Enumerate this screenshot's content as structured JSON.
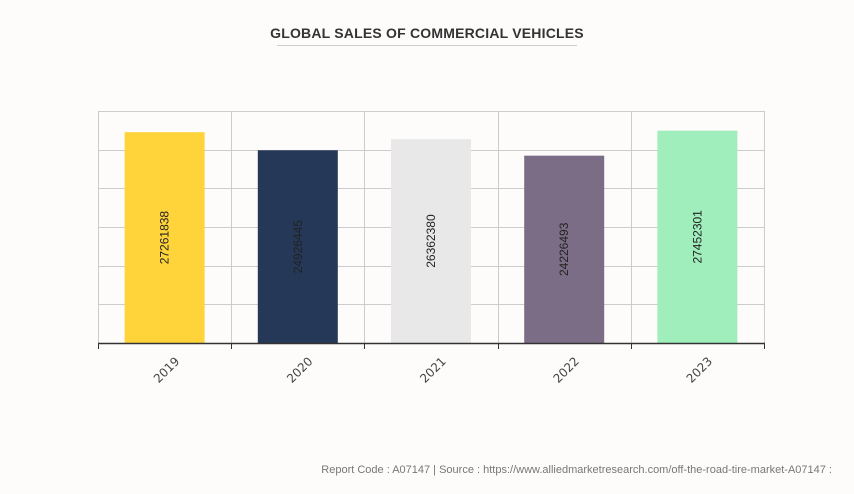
{
  "chart_data": {
    "type": "bar",
    "title": "GLOBAL SALES OF COMMERCIAL VEHICLES",
    "xlabel": "",
    "ylabel": "",
    "categories": [
      "2019",
      "2020",
      "2021",
      "2022",
      "2023"
    ],
    "values": [
      27261838,
      24926445,
      26362380,
      24226493,
      27452301
    ],
    "data_labels": [
      "27261838",
      "24926445",
      "26362380",
      "24226493",
      "27452301"
    ],
    "colors": [
      "#ffd43b",
      "#253858",
      "#e8e8e8",
      "#7b6d85",
      "#a0eebc"
    ],
    "ylim": [
      0,
      30000000
    ],
    "y_gridlines": 6,
    "grid": true,
    "legend": "none"
  },
  "footer": {
    "text": "Report Code : A07147  |  Source : https://www.alliedmarketresearch.com/off-the-road-tire-market-A07147 :"
  }
}
